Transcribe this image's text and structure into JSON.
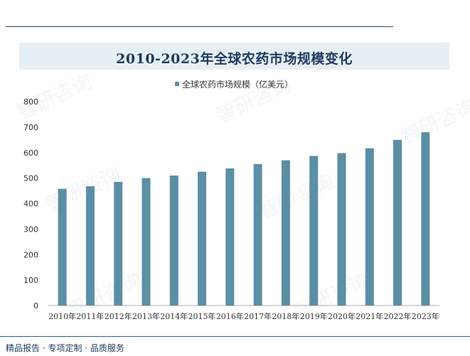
{
  "page": {
    "title": "2010-2023年全球农药市场规模变化",
    "footer": "精品报告 · 专项定制 · 品质服务",
    "watermark": "智研咨询"
  },
  "colors": {
    "bar": "#5b8fa5",
    "title": "#1f3a5f",
    "title_band": "#e7eff6",
    "axis": "#b0b0b0"
  },
  "chart_data": {
    "type": "bar",
    "title": "2010-2023年全球农药市场规模变化",
    "categories": [
      "2010年",
      "2011年",
      "2012年",
      "2013年",
      "2014年",
      "2015年",
      "2016年",
      "2017年",
      "2018年",
      "2019年",
      "2020年",
      "2021年",
      "2022年",
      "2023年"
    ],
    "series": [
      {
        "name": "全球农药市场规模（亿美元）",
        "values": [
          458,
          468,
          485,
          500,
          510,
          525,
          538,
          555,
          570,
          587,
          598,
          617,
          650,
          680
        ]
      }
    ],
    "yticks": [
      "0",
      "100",
      "200",
      "300",
      "400",
      "500",
      "600",
      "700",
      "800"
    ],
    "ylim": [
      0,
      800
    ],
    "grid": false,
    "legend": "top-center",
    "xlabel": "",
    "ylabel": ""
  }
}
